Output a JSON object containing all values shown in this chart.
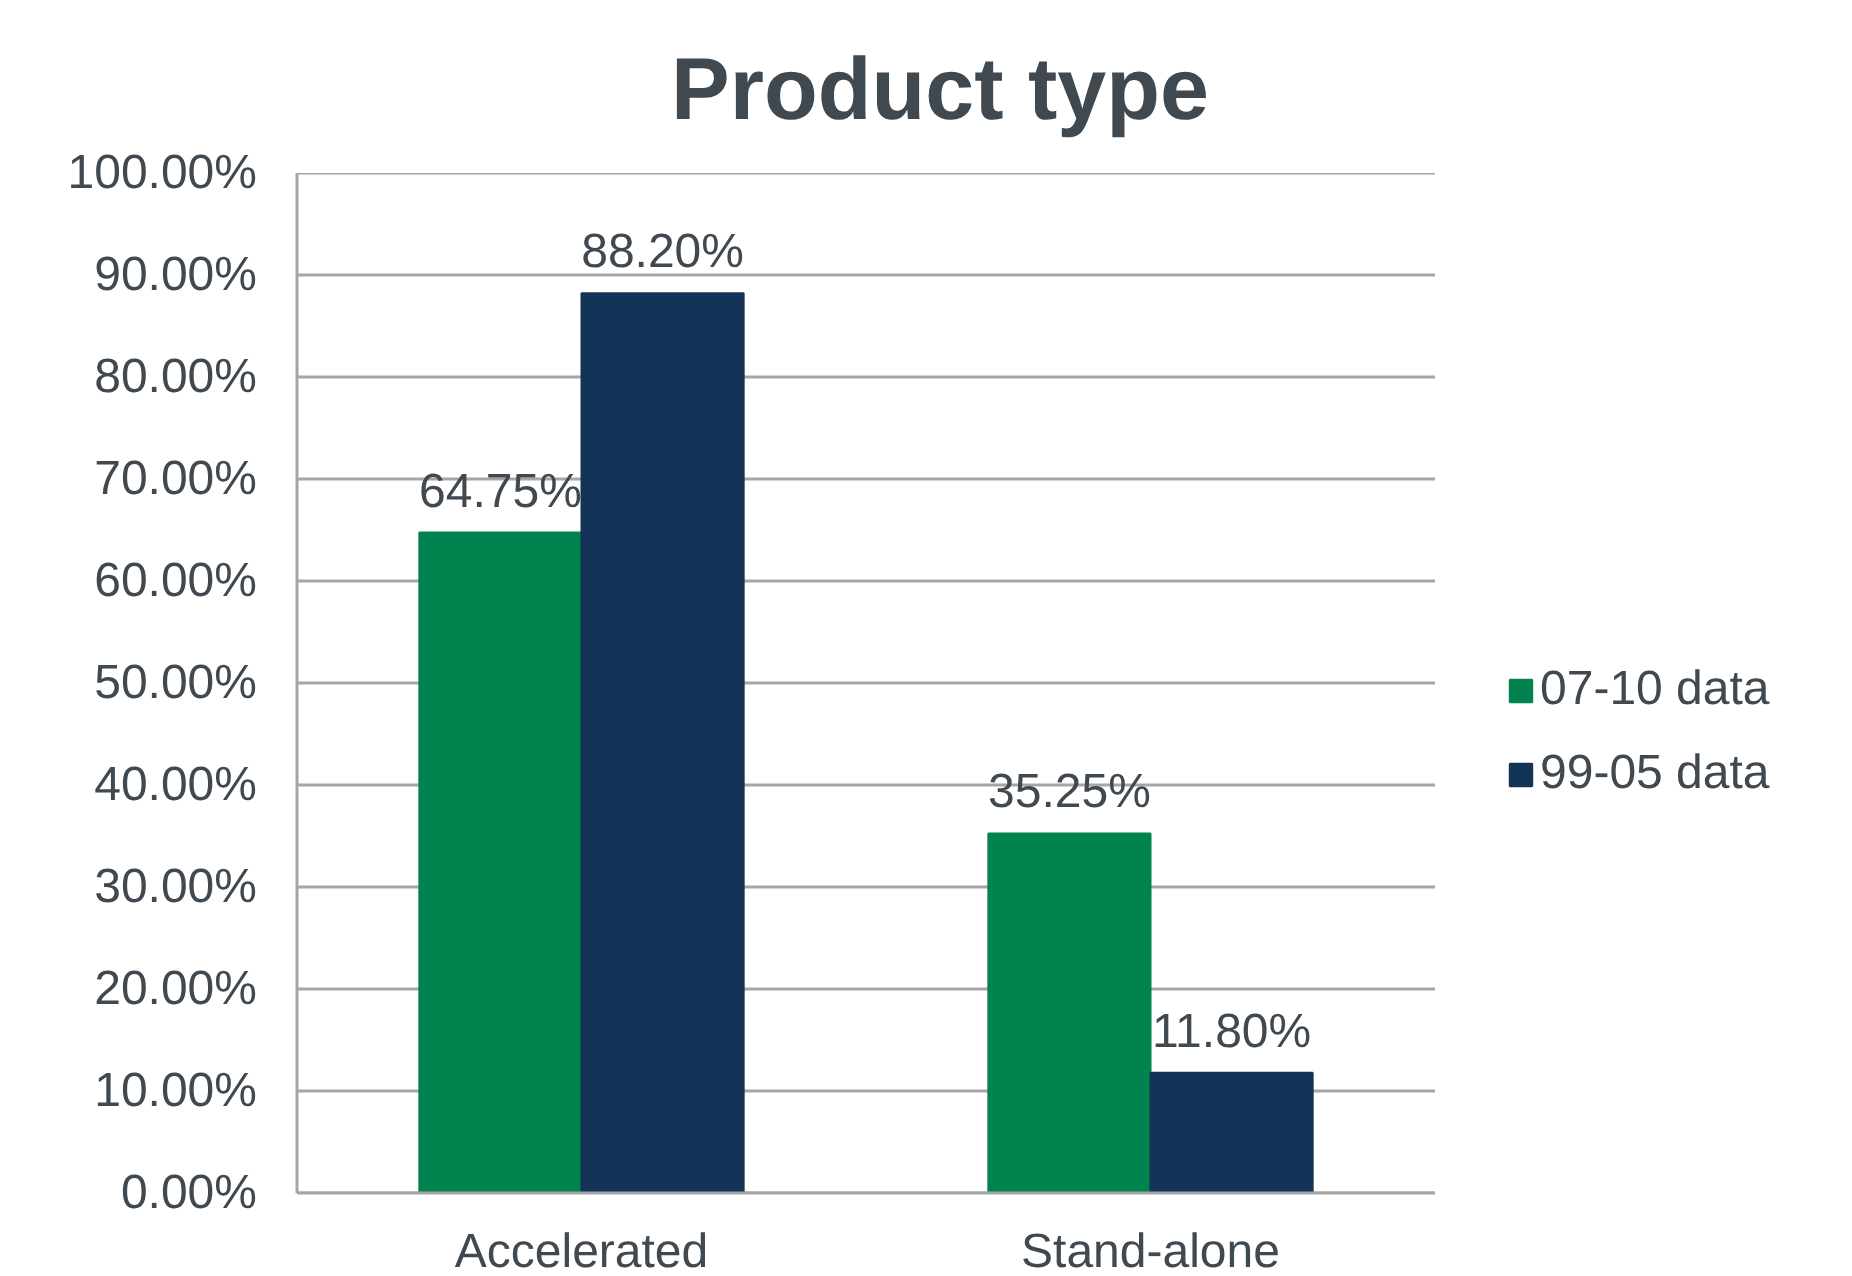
{
  "chart_data": {
    "type": "bar",
    "title": "Product type",
    "categories": [
      "Accelerated",
      "Stand-alone"
    ],
    "series": [
      {
        "name": "07-10 data",
        "color": "#00834f",
        "values": [
          64.75,
          35.25
        ],
        "value_labels": [
          "64.75%",
          "35.25%"
        ]
      },
      {
        "name": "99-05 data",
        "color": "#133357",
        "values": [
          88.2,
          11.8
        ],
        "value_labels": [
          "88.20%",
          "11.80%"
        ]
      }
    ],
    "ylim": [
      0,
      100
    ],
    "yticks": [
      {
        "value": 0,
        "label": "0.00%"
      },
      {
        "value": 10,
        "label": "10.00%"
      },
      {
        "value": 20,
        "label": "20.00%"
      },
      {
        "value": 30,
        "label": "30.00%"
      },
      {
        "value": 40,
        "label": "40.00%"
      },
      {
        "value": 50,
        "label": "50.00%"
      },
      {
        "value": 60,
        "label": "60.00%"
      },
      {
        "value": 70,
        "label": "70.00%"
      },
      {
        "value": 80,
        "label": "80.00%"
      },
      {
        "value": 90,
        "label": "90.00%"
      },
      {
        "value": 100,
        "label": "100.00%"
      }
    ],
    "grid": "y",
    "legend": "right"
  }
}
